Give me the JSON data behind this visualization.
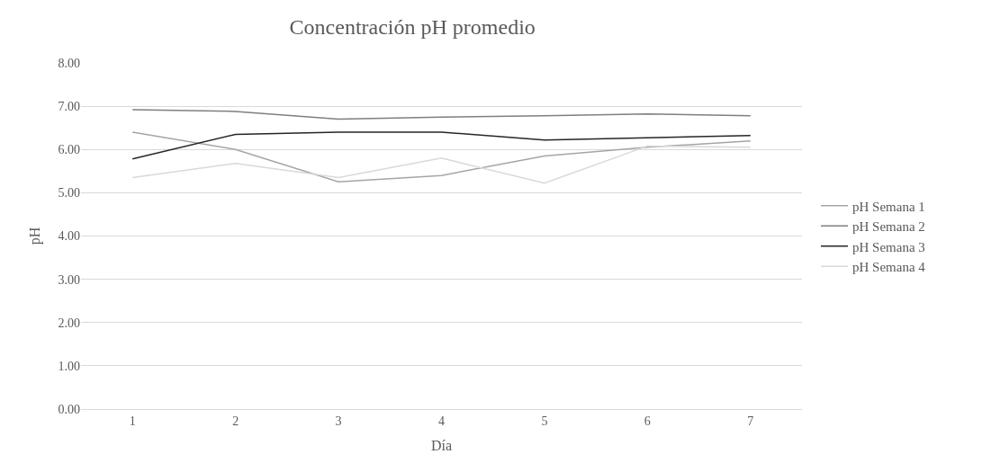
{
  "chart_data": {
    "type": "line",
    "title": "Concentración pH promedio",
    "xlabel": "Día",
    "ylabel": "pH",
    "categories": [
      "1",
      "2",
      "3",
      "4",
      "5",
      "6",
      "7"
    ],
    "series": [
      {
        "name": "pH Semana 1",
        "color": "#a5a5a5",
        "values": [
          6.4,
          6.0,
          5.25,
          5.4,
          5.85,
          6.05,
          6.2
        ]
      },
      {
        "name": "pH Semana 2",
        "color": "#7f7f7f",
        "values": [
          6.92,
          6.88,
          6.7,
          6.75,
          6.78,
          6.82,
          6.78
        ]
      },
      {
        "name": "pH Semana 3",
        "color": "#262626",
        "values": [
          5.78,
          6.35,
          6.4,
          6.4,
          6.22,
          6.27,
          6.32
        ]
      },
      {
        "name": "pH Semana 4",
        "color": "#d9d9d9",
        "values": [
          5.35,
          5.68,
          5.35,
          5.8,
          5.22,
          6.08,
          6.05
        ]
      }
    ],
    "ylim": [
      0,
      8
    ],
    "yticks": [
      {
        "value": 0,
        "label": "0.00"
      },
      {
        "value": 1,
        "label": "1.00"
      },
      {
        "value": 2,
        "label": "2.00"
      },
      {
        "value": 3,
        "label": "3.00"
      },
      {
        "value": 4,
        "label": "4.00"
      },
      {
        "value": 5,
        "label": "5.00"
      },
      {
        "value": 6,
        "label": "6.00"
      },
      {
        "value": 7,
        "label": "7.00"
      },
      {
        "value": 8,
        "label": "8.00"
      }
    ],
    "grid": "y",
    "legend": "right",
    "marker": "none",
    "line_style": "solid"
  }
}
